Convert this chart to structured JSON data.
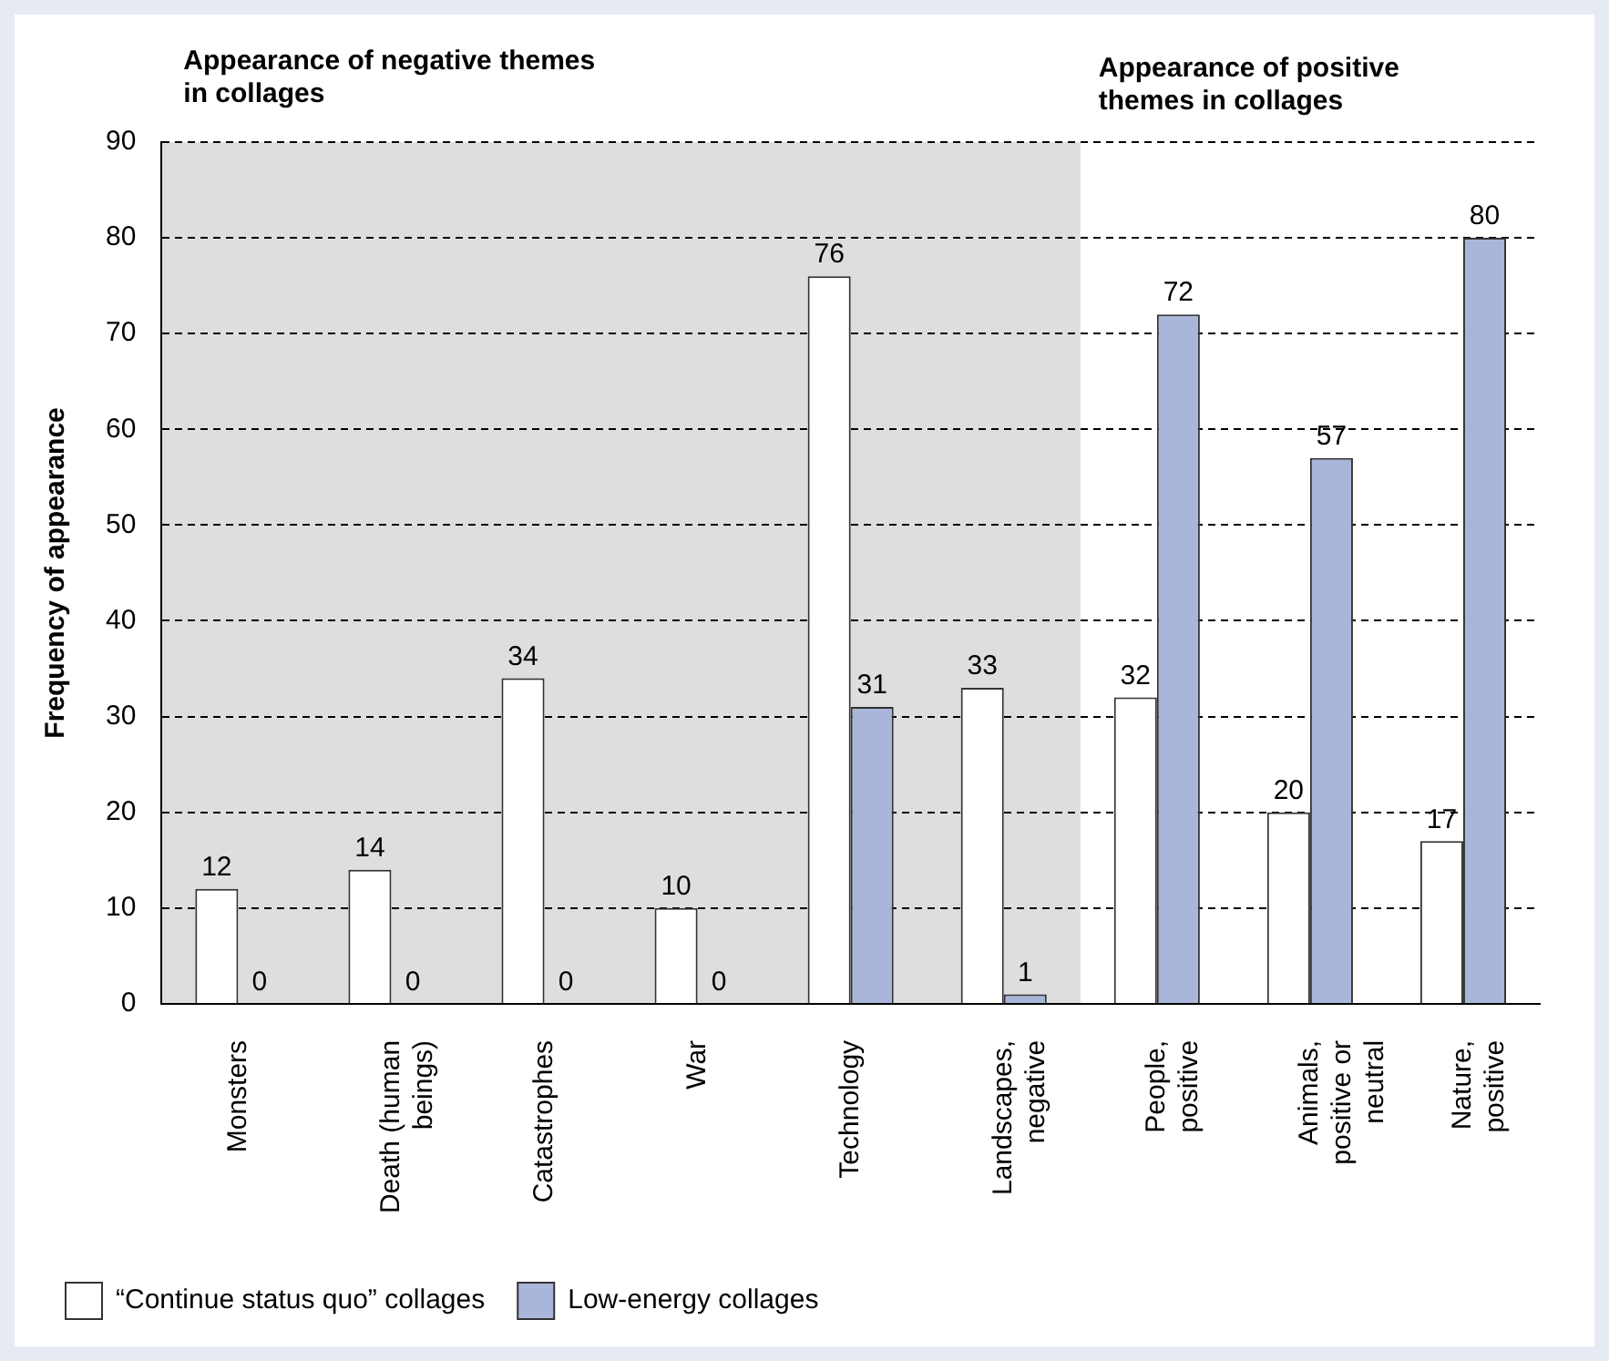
{
  "chart_data": {
    "type": "bar",
    "ylabel": "Frequency of appearance",
    "categories": [
      "Monsters",
      "Death (human beings)",
      "Catastrophes",
      "War",
      "Technology",
      "Landscapes, negative",
      "People, positive",
      "Animals, positive or neutral",
      "Nature, positive"
    ],
    "series": [
      {
        "name": "“Continue status quo” collages",
        "color": "#ffffff",
        "values": [
          12,
          14,
          34,
          10,
          76,
          33,
          32,
          20,
          17
        ]
      },
      {
        "name": "Low-energy collages",
        "color": "#a9b5d9",
        "values": [
          0,
          0,
          0,
          0,
          31,
          1,
          72,
          57,
          80
        ]
      }
    ],
    "ylim": [
      0,
      90
    ],
    "yticks": [
      0,
      10,
      20,
      30,
      40,
      50,
      60,
      70,
      80,
      90
    ],
    "grid": "y",
    "legend": "bottom left",
    "data_labels": true,
    "bands": [
      {
        "axis": "x",
        "from": "Monsters",
        "to": "Landscapes, negative",
        "label": "Appearance of negative themes in collages",
        "color": "#dedede"
      }
    ],
    "annotations": [
      "Appearance of positive themes in collages"
    ]
  }
}
